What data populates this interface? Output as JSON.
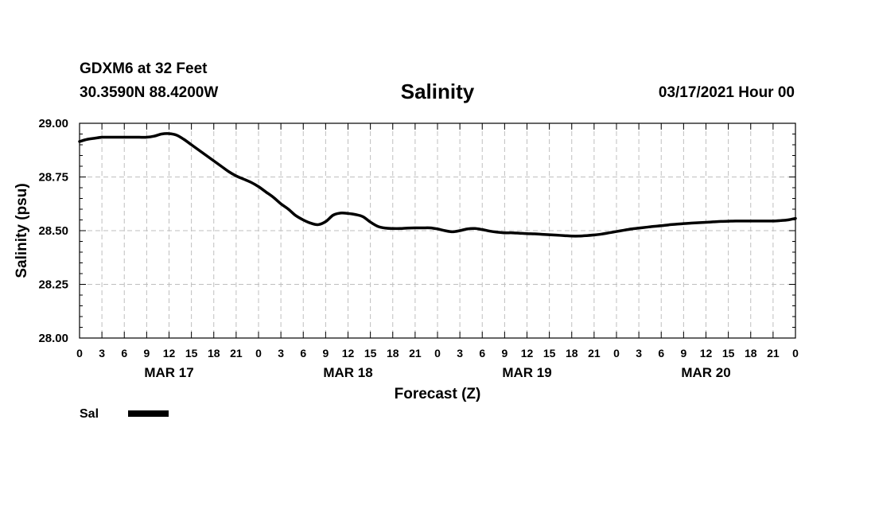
{
  "header": {
    "station": "GDXM6 at 32 Feet",
    "coords": "30.3590N 88.4200W",
    "title": "Salinity",
    "datetime": "03/17/2021 Hour 00"
  },
  "chart_data": {
    "type": "line",
    "title": "Salinity",
    "xlabel": "Forecast (Z)",
    "ylabel": "Salinity (psu)",
    "ylim": [
      28.0,
      29.0
    ],
    "xlim_hours": [
      0,
      96
    ],
    "yticks": [
      "28.00",
      "28.25",
      "28.50",
      "28.75",
      "29.00"
    ],
    "xtick_labels": [
      "0",
      "3",
      "6",
      "9",
      "12",
      "15",
      "18",
      "21",
      "0",
      "3",
      "6",
      "9",
      "12",
      "15",
      "18",
      "21",
      "0",
      "3",
      "6",
      "9",
      "12",
      "15",
      "18",
      "21",
      "0",
      "3",
      "6",
      "9",
      "12",
      "15",
      "18",
      "21",
      "0"
    ],
    "day_labels": [
      {
        "label": "MAR 17",
        "hour": 12
      },
      {
        "label": "MAR 18",
        "hour": 36
      },
      {
        "label": "MAR 19",
        "hour": 60
      },
      {
        "label": "MAR 20",
        "hour": 84
      }
    ],
    "grid": true,
    "legend": {
      "placement": "bottom-left",
      "entries": [
        {
          "name": "Sal"
        }
      ]
    },
    "series": [
      {
        "name": "Sal",
        "x": [
          0,
          1,
          2,
          3,
          4,
          5,
          6,
          7,
          8,
          9,
          10,
          11,
          12,
          13,
          14,
          15,
          16,
          17,
          18,
          19,
          20,
          21,
          22,
          23,
          24,
          25,
          26,
          27,
          28,
          29,
          30,
          31,
          32,
          33,
          34,
          35,
          36,
          37,
          38,
          39,
          40,
          41,
          42,
          43,
          44,
          45,
          46,
          47,
          48,
          49,
          50,
          51,
          52,
          53,
          54,
          55,
          56,
          57,
          58,
          59,
          60,
          61,
          62,
          63,
          64,
          65,
          66,
          67,
          68,
          69,
          70,
          71,
          72,
          73,
          74,
          75,
          76,
          77,
          78,
          79,
          80,
          81,
          82,
          83,
          84,
          85,
          86,
          87,
          88,
          89,
          90,
          91,
          92,
          93,
          94,
          95,
          96
        ],
        "values": [
          28.915,
          28.925,
          28.93,
          28.935,
          28.935,
          28.935,
          28.935,
          28.935,
          28.935,
          28.935,
          28.94,
          28.95,
          28.952,
          28.945,
          28.925,
          28.9,
          28.875,
          28.85,
          28.825,
          28.8,
          28.775,
          28.755,
          28.74,
          28.725,
          28.705,
          28.68,
          28.655,
          28.625,
          28.6,
          28.57,
          28.55,
          28.535,
          28.528,
          28.542,
          28.572,
          28.582,
          28.58,
          28.575,
          28.565,
          28.54,
          28.52,
          28.512,
          28.51,
          28.51,
          28.512,
          28.513,
          28.513,
          28.513,
          28.508,
          28.5,
          28.495,
          28.5,
          28.508,
          28.51,
          28.505,
          28.498,
          28.493,
          28.49,
          28.49,
          28.488,
          28.486,
          28.485,
          28.483,
          28.481,
          28.479,
          28.477,
          28.475,
          28.475,
          28.477,
          28.48,
          28.484,
          28.49,
          28.496,
          28.502,
          28.508,
          28.512,
          28.516,
          28.52,
          28.523,
          28.527,
          28.53,
          28.533,
          28.535,
          28.537,
          28.539,
          28.541,
          28.543,
          28.544,
          28.545,
          28.545,
          28.545,
          28.545,
          28.545,
          28.545,
          28.547,
          28.55,
          28.557
        ]
      }
    ]
  }
}
